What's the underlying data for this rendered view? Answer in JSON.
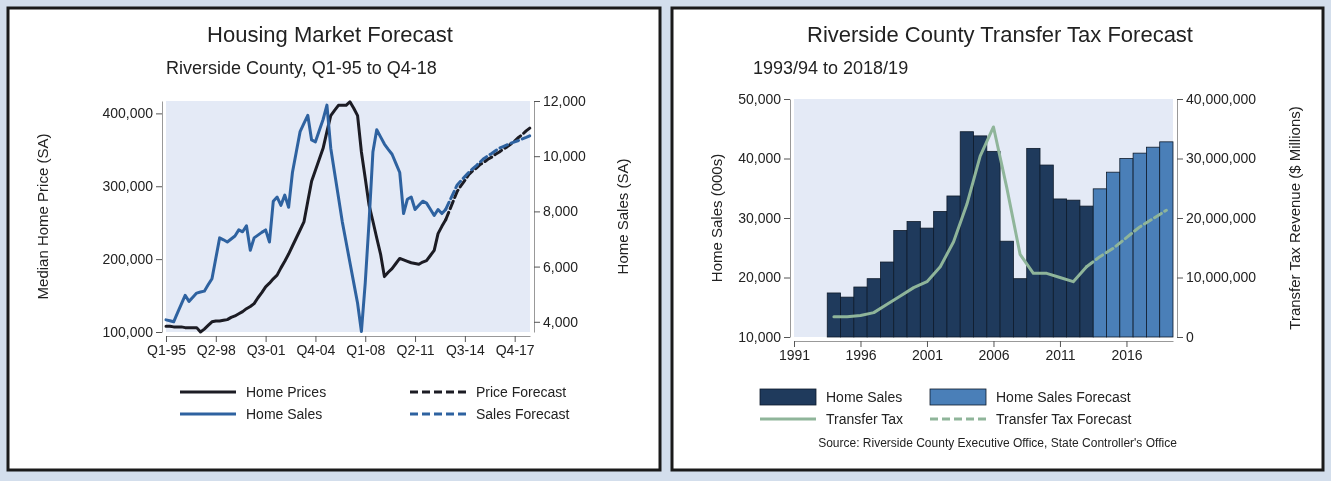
{
  "chart_data": [
    {
      "type": "line",
      "title": "Housing Market Forecast",
      "subtitle": "Riverside County, Q1-95 to Q4-18",
      "ylabel": "Median Home Price (SA)",
      "y2label": "Home Sales (SA)",
      "categories": [
        "Q1-95",
        null,
        null,
        null,
        null,
        null,
        null,
        null,
        null,
        null,
        null,
        null,
        null,
        "Q2-98",
        null,
        null,
        null,
        null,
        null,
        null,
        null,
        null,
        null,
        null,
        null,
        null,
        "Q3-01",
        null,
        null,
        null,
        null,
        null,
        null,
        null,
        null,
        null,
        null,
        null,
        null,
        "Q4-04",
        null,
        null,
        null,
        null,
        null,
        null,
        null,
        null,
        null,
        null,
        null,
        null,
        "Q1-08",
        null,
        null,
        null,
        null,
        null,
        null,
        null,
        null,
        null,
        null,
        null,
        null,
        "Q2-11",
        null,
        null,
        null,
        null,
        null,
        null,
        null,
        null,
        null,
        null,
        null,
        null,
        "Q3-14",
        null,
        null,
        null,
        null,
        null,
        null,
        null,
        null,
        null,
        null,
        null,
        null,
        "Q4-17",
        null,
        null,
        null,
        null
      ],
      "ylim": [
        100000,
        417000
      ],
      "yticks": [
        {
          "value": 100000,
          "label": "100,000"
        },
        {
          "value": 200000,
          "label": "200,000"
        },
        {
          "value": 300000,
          "label": "300,000"
        },
        {
          "value": 400000,
          "label": "400,000"
        }
      ],
      "y2lim": [
        3630,
        12000
      ],
      "y2ticks": [
        {
          "value": 4000,
          "label": "4,000"
        },
        {
          "value": 6000,
          "label": "6,000"
        },
        {
          "value": 8000,
          "label": "8,000"
        },
        {
          "value": 10000,
          "label": "10,000"
        },
        {
          "value": 12000,
          "label": "12,000"
        }
      ],
      "legend": "bottom",
      "series": [
        {
          "name": "Home Prices",
          "color": "#1c1c24",
          "values": [
            108000,
            108000,
            107000,
            107000,
            107000,
            106000,
            106000,
            106000,
            106000,
            100000,
            104000,
            109000,
            114000,
            115000,
            115000,
            116000,
            117000,
            120000,
            122000,
            125000,
            128000,
            132000,
            135000,
            139000,
            147000,
            154000,
            162000,
            167000,
            173000,
            178000,
            188000,
            197000,
            207000,
            218000,
            229000,
            240000,
            251000,
            279000,
            307000,
            322000,
            337000,
            352000,
            375000,
            397000,
            404000,
            411000,
            411000,
            411000,
            416000,
            407000,
            397000,
            347000,
            311000,
            274000,
            252000,
            229000,
            207000,
            176000,
            182000,
            187000,
            194000,
            201000,
            199000,
            197000,
            195000,
            194000,
            193000,
            196000,
            198000,
            205000,
            212000,
            235000,
            245000,
            254000,
            null,
            null,
            null,
            null,
            null,
            null,
            null,
            null,
            null,
            null,
            null,
            null,
            null,
            null,
            null,
            null,
            null,
            null,
            null,
            null,
            null,
            null
          ]
        },
        {
          "name": "Home Sales",
          "color": "#2e62a0",
          "axis": "y2",
          "values": [
            4070,
            4040,
            4000,
            4320,
            4640,
            4960,
            4740,
            4890,
            5040,
            5080,
            5110,
            5340,
            5560,
            6300,
            7040,
            6970,
            6890,
            7000,
            7110,
            7330,
            7260,
            7480,
            6590,
            7040,
            7140,
            7240,
            7330,
            6890,
            8370,
            8520,
            8220,
            8590,
            8150,
            9410,
            10150,
            10890,
            11190,
            11480,
            10590,
            10520,
            10930,
            11330,
            11850,
            10290,
            9400,
            8520,
            7630,
            6890,
            6150,
            5410,
            4670,
            3650,
            5410,
            7630,
            10150,
            10960,
            10700,
            10440,
            10250,
            10070,
            9740,
            9410,
            7920,
            8440,
            8520,
            8070,
            8220,
            8370,
            8300,
            8080,
            7850,
            8070,
            7920,
            8070,
            null,
            null,
            null,
            null,
            null,
            null,
            null,
            null,
            null,
            null,
            null,
            null,
            null,
            null,
            null,
            null,
            null,
            null,
            null,
            null,
            null,
            null
          ]
        },
        {
          "name": "Price Forecast",
          "color": "#1c1c24",
          "line_style": "dashed",
          "values": [
            null,
            null,
            null,
            null,
            null,
            null,
            null,
            null,
            null,
            null,
            null,
            null,
            null,
            null,
            null,
            null,
            null,
            null,
            null,
            null,
            null,
            null,
            null,
            null,
            null,
            null,
            null,
            null,
            null,
            null,
            null,
            null,
            null,
            null,
            null,
            null,
            null,
            null,
            null,
            null,
            null,
            null,
            null,
            null,
            null,
            null,
            null,
            null,
            null,
            null,
            null,
            null,
            null,
            null,
            null,
            null,
            null,
            null,
            null,
            null,
            null,
            null,
            null,
            null,
            null,
            null,
            null,
            null,
            null,
            null,
            null,
            null,
            null,
            254000,
            267000,
            280000,
            293000,
            301000,
            308000,
            316000,
            321000,
            325000,
            330000,
            333000,
            337000,
            340000,
            344000,
            347000,
            351000,
            354000,
            358000,
            362000,
            367000,
            371000,
            376000,
            380000
          ]
        },
        {
          "name": "Sales Forecast",
          "color": "#2e62a0",
          "line_style": "dashed",
          "axis": "y2",
          "values": [
            null,
            null,
            null,
            null,
            null,
            null,
            null,
            null,
            null,
            null,
            null,
            null,
            null,
            null,
            null,
            null,
            null,
            null,
            null,
            null,
            null,
            null,
            null,
            null,
            null,
            null,
            null,
            null,
            null,
            null,
            null,
            null,
            null,
            null,
            null,
            null,
            null,
            null,
            null,
            null,
            null,
            null,
            null,
            null,
            null,
            null,
            null,
            null,
            null,
            null,
            null,
            null,
            null,
            null,
            null,
            null,
            null,
            null,
            null,
            null,
            null,
            null,
            null,
            null,
            null,
            null,
            null,
            null,
            null,
            null,
            null,
            null,
            null,
            8070,
            8370,
            8660,
            8960,
            9110,
            9260,
            9410,
            9540,
            9660,
            9790,
            9920,
            10010,
            10100,
            10200,
            10290,
            10350,
            10410,
            10470,
            10520,
            10570,
            10630,
            10680,
            10740
          ]
        }
      ]
    },
    {
      "type": "bar",
      "title": "Riverside County Transfer Tax Forecast",
      "subtitle": "1993/94 to 2018/19",
      "ylabel": "Home Sales (000s)",
      "y2label": "Transfer Tax Revenue ($ Millions)",
      "x": [
        1994,
        1995,
        1996,
        1997,
        1998,
        1999,
        2000,
        2001,
        2002,
        2003,
        2004,
        2005,
        2006,
        2007,
        2008,
        2009,
        2010,
        2011,
        2012,
        2013,
        2014,
        2015,
        2016,
        2017,
        2018,
        2019
      ],
      "xlim": [
        1991,
        2019.5
      ],
      "xticks": [
        1991,
        1996,
        2001,
        2006,
        2011,
        2016
      ],
      "ylim": [
        10000,
        50000
      ],
      "yticks": [
        {
          "value": 10000,
          "label": "10,000"
        },
        {
          "value": 20000,
          "label": "20,000"
        },
        {
          "value": 30000,
          "label": "30,000"
        },
        {
          "value": 40000,
          "label": "40,000"
        },
        {
          "value": 50000,
          "label": "50,000"
        }
      ],
      "y2lim": [
        0,
        40000000
      ],
      "y2ticks": [
        0,
        {
          "value": 10000000,
          "label": "10,000,000"
        },
        {
          "value": 20000000,
          "label": "20,000,000"
        },
        {
          "value": 30000000,
          "label": "30,000,000"
        },
        {
          "value": 40000000,
          "label": "40,000,000"
        }
      ],
      "legend": "bottom",
      "annotations": [
        "Source: Riverside County Executive Office, State Controller's Office"
      ],
      "series": [
        {
          "name": "Home Sales",
          "color": "#1f3a5c",
          "values": [
            17400,
            16700,
            18400,
            19800,
            22600,
            27900,
            29400,
            28300,
            31100,
            33700,
            44500,
            43800,
            41200,
            26100,
            19800,
            41700,
            38900,
            33200,
            33000,
            32000,
            null,
            null,
            null,
            null,
            null,
            null
          ]
        },
        {
          "name": "Transfer Tax",
          "type": "line",
          "axis": "y2",
          "color": "#8fb59a",
          "x": [
            1994,
            1995,
            1996,
            1997,
            1998,
            1999,
            2000,
            2001,
            2002,
            2003,
            2004,
            2005,
            2006,
            2007,
            2008,
            2009,
            2010,
            2011,
            2012,
            2013
          ],
          "values": [
            3400000,
            3400000,
            3600000,
            4100000,
            5500000,
            6900000,
            8300000,
            9300000,
            11800000,
            16000000,
            22300000,
            30400000,
            35300000,
            25100000,
            13900000,
            10700000,
            10700000,
            10000000,
            9300000,
            11800000
          ]
        },
        {
          "name": "Home Sales Forecast",
          "color": "#4a7fb8",
          "values": [
            null,
            null,
            null,
            null,
            null,
            null,
            null,
            null,
            null,
            null,
            null,
            null,
            null,
            null,
            null,
            null,
            null,
            null,
            null,
            null,
            34900,
            37700,
            40000,
            40900,
            41900,
            42800
          ]
        },
        {
          "name": "Transfer Tax Forecast",
          "type": "line",
          "axis": "y2",
          "line_style": "dashed",
          "color": "#8fb59a",
          "x": [
            2013,
            2014,
            2015,
            2016,
            2017,
            2018,
            2019
          ],
          "values": [
            11800000,
            13500000,
            14900000,
            16700000,
            18500000,
            19900000,
            21300000
          ]
        }
      ]
    }
  ]
}
